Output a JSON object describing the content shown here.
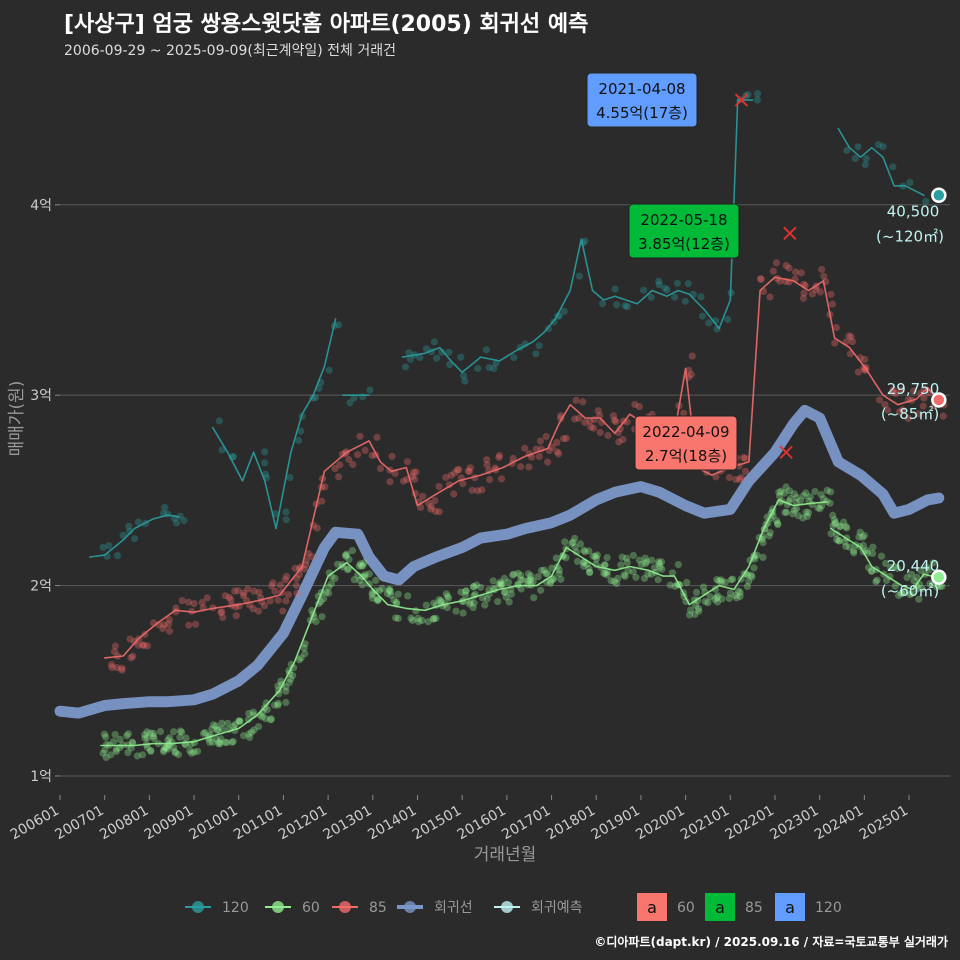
{
  "title": "[사상구] 엄궁 쌍용스윗닷홈 아파트(2005) 회귀선 예측",
  "subtitle": "2006-09-29 ~ 2025-09-09(최근계약일) 전체 거래건",
  "credit": "©디아파트(dapt.kr) / 2025.09.16 / 자료=국토교통부 실거래가",
  "colors": {
    "background": "#2b2b2b",
    "s120": "#2a9d9f",
    "s60": "#90ee90",
    "s85": "#f26b6b",
    "regression": "#7b97c9",
    "forecast": "#bff3f0",
    "label60": "#f8766d",
    "label85": "#00ba38",
    "label120": "#619cff"
  },
  "chart_data": {
    "type": "line",
    "xlabel": "거래년월",
    "ylabel": "매매가(원)",
    "xlim": [
      "2006-01",
      "2025-12"
    ],
    "ylim": [
      0.9,
      4.75
    ],
    "y_unit": "억",
    "x_tick_labels": [
      "200601",
      "200701",
      "200801",
      "200901",
      "201001",
      "201101",
      "201201",
      "201301",
      "201401",
      "201501",
      "201601",
      "201701",
      "201801",
      "201901",
      "202001",
      "202101",
      "202201",
      "202301",
      "202401",
      "202501"
    ],
    "y_ticks": [
      {
        "value": 1,
        "label": "1억"
      },
      {
        "value": 2,
        "label": "2억"
      },
      {
        "value": 3,
        "label": "3억"
      },
      {
        "value": 4,
        "label": "4억"
      }
    ],
    "series": [
      {
        "name": "120",
        "key": "s120",
        "segments": [
          [
            [
              "2006-09",
              2.15
            ],
            [
              "2007-01",
              2.16
            ],
            [
              "2007-06",
              2.24
            ],
            [
              "2007-09",
              2.3
            ],
            [
              "2008-02",
              2.35
            ],
            [
              "2008-06",
              2.37
            ],
            [
              "2008-09",
              2.36
            ]
          ],
          [
            [
              "2009-06",
              2.83
            ],
            [
              "2009-10",
              2.7
            ],
            [
              "2010-02",
              2.55
            ],
            [
              "2010-05",
              2.7
            ],
            [
              "2010-08",
              2.55
            ],
            [
              "2010-11",
              2.3
            ],
            [
              "2011-03",
              2.7
            ],
            [
              "2011-06",
              2.9
            ],
            [
              "2011-09",
              3.0
            ],
            [
              "2011-12",
              3.15
            ],
            [
              "2012-03",
              3.4
            ]
          ],
          [
            [
              "2012-05",
              3.0
            ],
            [
              "2012-12",
              3.0
            ]
          ],
          [
            [
              "2013-09",
              3.2
            ],
            [
              "2014-03",
              3.22
            ],
            [
              "2014-07",
              3.25
            ],
            [
              "2014-10",
              3.18
            ],
            [
              "2015-01",
              3.12
            ],
            [
              "2015-06",
              3.2
            ],
            [
              "2015-11",
              3.18
            ],
            [
              "2016-04",
              3.24
            ],
            [
              "2016-08",
              3.28
            ],
            [
              "2016-11",
              3.33
            ],
            [
              "2017-02",
              3.4
            ],
            [
              "2017-06",
              3.55
            ],
            [
              "2017-09",
              3.82
            ],
            [
              "2017-12",
              3.55
            ],
            [
              "2018-03",
              3.5
            ],
            [
              "2018-06",
              3.52
            ],
            [
              "2018-09",
              3.5
            ],
            [
              "2018-12",
              3.48
            ],
            [
              "2019-04",
              3.55
            ],
            [
              "2019-08",
              3.52
            ],
            [
              "2019-11",
              3.55
            ],
            [
              "2020-02",
              3.53
            ],
            [
              "2020-06",
              3.45
            ],
            [
              "2020-10",
              3.35
            ],
            [
              "2021-01",
              3.5
            ],
            [
              "2021-03",
              4.55
            ],
            [
              "2021-07",
              4.55
            ]
          ],
          [
            [
              "2023-06",
              4.4
            ],
            [
              "2023-09",
              4.3
            ],
            [
              "2023-12",
              4.25
            ],
            [
              "2024-03",
              4.3
            ],
            [
              "2024-06",
              4.25
            ],
            [
              "2024-09",
              4.1
            ],
            [
              "2024-12",
              4.1
            ],
            [
              "2025-05",
              4.05
            ]
          ]
        ]
      },
      {
        "name": "60",
        "key": "s60",
        "segments": [
          [
            [
              "2006-12",
              1.16
            ],
            [
              "2007-04",
              1.16
            ],
            [
              "2007-09",
              1.16
            ],
            [
              "2008-02",
              1.17
            ],
            [
              "2008-07",
              1.17
            ],
            [
              "2009-01",
              1.18
            ],
            [
              "2009-06",
              1.21
            ],
            [
              "2010-01",
              1.25
            ],
            [
              "2010-06",
              1.32
            ],
            [
              "2010-12",
              1.45
            ],
            [
              "2011-04",
              1.6
            ],
            [
              "2011-09",
              1.85
            ],
            [
              "2012-01",
              2.05
            ],
            [
              "2012-06",
              2.12
            ],
            [
              "2012-10",
              2.05
            ],
            [
              "2013-01",
              1.98
            ],
            [
              "2013-05",
              1.9
            ],
            [
              "2013-10",
              1.88
            ],
            [
              "2014-03",
              1.87
            ],
            [
              "2014-08",
              1.9
            ],
            [
              "2015-01",
              1.92
            ],
            [
              "2015-06",
              1.95
            ],
            [
              "2015-11",
              1.98
            ],
            [
              "2016-04",
              2.0
            ],
            [
              "2016-09",
              2.0
            ],
            [
              "2017-01",
              2.05
            ],
            [
              "2017-05",
              2.2
            ],
            [
              "2017-09",
              2.15
            ],
            [
              "2018-01",
              2.1
            ],
            [
              "2018-06",
              2.08
            ],
            [
              "2018-10",
              2.1
            ],
            [
              "2019-03",
              2.08
            ],
            [
              "2019-07",
              2.05
            ],
            [
              "2019-10",
              2.05
            ],
            [
              "2020-02",
              1.9
            ],
            [
              "2020-06",
              1.95
            ],
            [
              "2020-10",
              2.0
            ],
            [
              "2021-02",
              1.98
            ],
            [
              "2021-06",
              2.1
            ],
            [
              "2021-10",
              2.3
            ],
            [
              "2022-02",
              2.45
            ],
            [
              "2022-06",
              2.42
            ],
            [
              "2022-10",
              2.43
            ],
            [
              "2023-03",
              2.44
            ]
          ],
          [
            [
              "2023-04",
              2.3
            ],
            [
              "2023-08",
              2.25
            ],
            [
              "2023-12",
              2.2
            ],
            [
              "2024-03",
              2.1
            ],
            [
              "2024-07",
              2.05
            ],
            [
              "2024-11",
              2.0
            ],
            [
              "2025-02",
              1.98
            ],
            [
              "2025-05",
              2.06
            ],
            [
              "2025-09",
              2.04
            ]
          ]
        ]
      },
      {
        "name": "85",
        "key": "s85",
        "segments": [
          [
            [
              "2007-01",
              1.62
            ],
            [
              "2007-06",
              1.63
            ],
            [
              "2007-10",
              1.72
            ],
            [
              "2008-03",
              1.8
            ],
            [
              "2008-08",
              1.87
            ],
            [
              "2009-01",
              1.86
            ],
            [
              "2009-06",
              1.88
            ],
            [
              "2010-01",
              1.9
            ],
            [
              "2010-06",
              1.92
            ],
            [
              "2010-12",
              1.95
            ],
            [
              "2011-06",
              2.1
            ],
            [
              "2011-12",
              2.6
            ],
            [
              "2012-06",
              2.7
            ],
            [
              "2012-12",
              2.76
            ],
            [
              "2013-03",
              2.65
            ],
            [
              "2013-06",
              2.6
            ],
            [
              "2013-10",
              2.62
            ],
            [
              "2014-01",
              2.42
            ],
            [
              "2014-06",
              2.48
            ],
            [
              "2014-12",
              2.55
            ],
            [
              "2015-06",
              2.58
            ],
            [
              "2015-12",
              2.62
            ],
            [
              "2016-06",
              2.68
            ],
            [
              "2016-12",
              2.72
            ],
            [
              "2017-03",
              2.85
            ],
            [
              "2017-06",
              2.95
            ],
            [
              "2017-10",
              2.88
            ],
            [
              "2018-02",
              2.88
            ],
            [
              "2018-06",
              2.8
            ],
            [
              "2018-10",
              2.9
            ],
            [
              "2019-02",
              2.85
            ],
            [
              "2019-06",
              2.75
            ],
            [
              "2019-10",
              2.8
            ],
            [
              "2020-01",
              3.14
            ],
            [
              "2020-04",
              2.62
            ],
            [
              "2020-08",
              2.58
            ],
            [
              "2021-01",
              2.62
            ],
            [
              "2021-06",
              2.65
            ],
            [
              "2021-09",
              3.55
            ],
            [
              "2022-01",
              3.62
            ],
            [
              "2022-06",
              3.6
            ],
            [
              "2022-10",
              3.55
            ],
            [
              "2023-02",
              3.6
            ],
            [
              "2023-05",
              3.3
            ],
            [
              "2023-09",
              3.25
            ],
            [
              "2024-01",
              3.15
            ],
            [
              "2024-06",
              3.0
            ],
            [
              "2024-10",
              2.95
            ],
            [
              "2025-03",
              2.98
            ],
            [
              "2025-06",
              3.04
            ],
            [
              "2025-09",
              2.97
            ]
          ]
        ]
      },
      {
        "name": "회귀선",
        "key": "regression",
        "segments": [
          [
            [
              "2006-01",
              1.34
            ],
            [
              "2006-06",
              1.33
            ],
            [
              "2007-01",
              1.37
            ],
            [
              "2007-06",
              1.38
            ],
            [
              "2008-01",
              1.39
            ],
            [
              "2008-06",
              1.39
            ],
            [
              "2009-01",
              1.4
            ],
            [
              "2009-06",
              1.43
            ],
            [
              "2010-01",
              1.5
            ],
            [
              "2010-06",
              1.58
            ],
            [
              "2011-01",
              1.75
            ],
            [
              "2011-06",
              1.95
            ],
            [
              "2011-12",
              2.2
            ],
            [
              "2012-03",
              2.28
            ],
            [
              "2012-09",
              2.27
            ],
            [
              "2012-12",
              2.15
            ],
            [
              "2013-04",
              2.05
            ],
            [
              "2013-08",
              2.03
            ],
            [
              "2013-12",
              2.1
            ],
            [
              "2014-06",
              2.15
            ],
            [
              "2015-01",
              2.2
            ],
            [
              "2015-06",
              2.25
            ],
            [
              "2016-01",
              2.27
            ],
            [
              "2016-06",
              2.3
            ],
            [
              "2017-01",
              2.33
            ],
            [
              "2017-06",
              2.37
            ],
            [
              "2018-01",
              2.45
            ],
            [
              "2018-06",
              2.49
            ],
            [
              "2019-01",
              2.52
            ],
            [
              "2019-06",
              2.49
            ],
            [
              "2020-01",
              2.42
            ],
            [
              "2020-06",
              2.38
            ],
            [
              "2021-01",
              2.4
            ],
            [
              "2021-06",
              2.55
            ],
            [
              "2022-01",
              2.7
            ],
            [
              "2022-06",
              2.85
            ],
            [
              "2022-09",
              2.92
            ],
            [
              "2023-01",
              2.88
            ],
            [
              "2023-06",
              2.65
            ],
            [
              "2023-12",
              2.58
            ],
            [
              "2024-06",
              2.48
            ],
            [
              "2024-09",
              2.38
            ],
            [
              "2025-01",
              2.4
            ],
            [
              "2025-06",
              2.45
            ],
            [
              "2025-09",
              2.46
            ]
          ]
        ]
      }
    ],
    "forecast_points": [
      {
        "series": "120",
        "date": "2025-09",
        "value": 4.05,
        "label": "40,500",
        "area": "(~120㎡)"
      },
      {
        "series": "85",
        "date": "2025-09",
        "value": 2.975,
        "label": "29,750",
        "area": "(~85㎡)"
      },
      {
        "series": "60",
        "date": "2025-09",
        "value": 2.044,
        "label": "20,440",
        "area": "(~60㎡)"
      }
    ],
    "annotations": [
      {
        "key": "label120",
        "date_text": "2021-04-08",
        "price_text": "4.55억(17층)",
        "anchor": [
          "2021-04",
          4.55
        ]
      },
      {
        "key": "label85",
        "date_text": "2022-05-18",
        "price_text": "3.85억(12층)",
        "anchor": [
          "2022-05",
          3.85
        ]
      },
      {
        "key": "label60",
        "date_text": "2022-04-09",
        "price_text": "2.7억(18층)",
        "anchor": [
          "2022-04",
          2.7
        ]
      }
    ],
    "legend": {
      "placement": "bottom",
      "items": [
        {
          "label": "120",
          "key": "s120"
        },
        {
          "label": "60",
          "key": "s60"
        },
        {
          "label": "85",
          "key": "s85"
        },
        {
          "label": "회귀선",
          "key": "regression"
        },
        {
          "label": "회귀예측",
          "key": "forecast"
        }
      ],
      "label_items": [
        {
          "glyph": "a",
          "label": "60",
          "key": "label60"
        },
        {
          "glyph": "a",
          "label": "85",
          "key": "label85"
        },
        {
          "glyph": "a",
          "label": "120",
          "key": "label120"
        }
      ]
    },
    "grid": true
  }
}
